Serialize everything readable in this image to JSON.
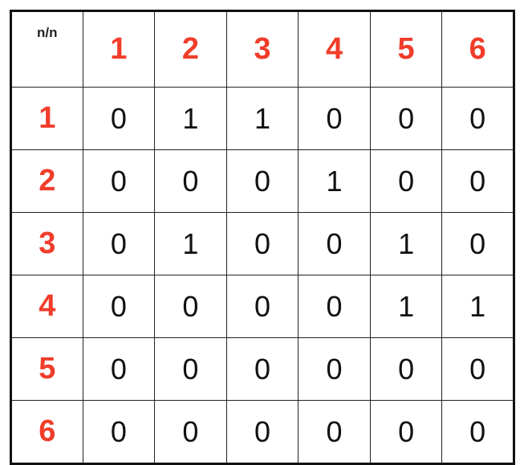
{
  "table": {
    "corner_label": "n/n",
    "header_color": "#f03d2a",
    "value_color": "#111111",
    "column_headers": [
      "1",
      "2",
      "3",
      "4",
      "5",
      "6"
    ],
    "rows": [
      {
        "label": "1",
        "cells": [
          "0",
          "1",
          "1",
          "0",
          "0",
          "0"
        ]
      },
      {
        "label": "2",
        "cells": [
          "0",
          "0",
          "0",
          "1",
          "0",
          "0"
        ]
      },
      {
        "label": "3",
        "cells": [
          "0",
          "1",
          "0",
          "0",
          "1",
          "0"
        ]
      },
      {
        "label": "4",
        "cells": [
          "0",
          "0",
          "0",
          "0",
          "1",
          "1"
        ]
      },
      {
        "label": "5",
        "cells": [
          "0",
          "0",
          "0",
          "0",
          "0",
          "0"
        ]
      },
      {
        "label": "6",
        "cells": [
          "0",
          "0",
          "0",
          "0",
          "0",
          "0"
        ]
      }
    ]
  }
}
